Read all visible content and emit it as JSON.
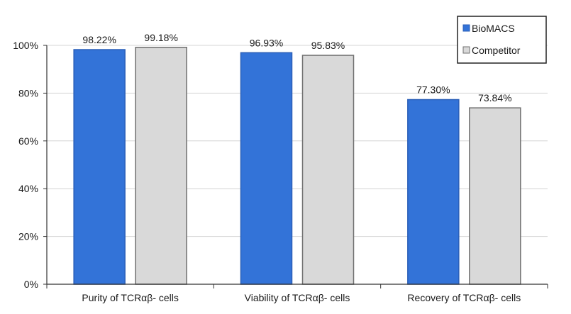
{
  "chart_data": {
    "type": "bar",
    "categories": [
      "Purity of TCRαβ- cells",
      "Viability of TCRαβ- cells",
      "Recovery of TCRαβ- cells"
    ],
    "series": [
      {
        "name": "BioMACS",
        "values": [
          98.22,
          96.93,
          77.3
        ],
        "labels": [
          "98.22%",
          "96.93%",
          "77.30%"
        ],
        "color": "#3373d8",
        "stroke": "#2b5fb8"
      },
      {
        "name": "Competitor",
        "values": [
          99.18,
          95.83,
          73.84
        ],
        "labels": [
          "99.18%",
          "95.83%",
          "73.84%"
        ],
        "color": "#d9d9d9",
        "stroke": "#707070"
      }
    ],
    "ylim": [
      0,
      100
    ],
    "yticks": [
      0,
      20,
      40,
      60,
      80,
      100
    ],
    "ytick_labels": [
      "0%",
      "20%",
      "40%",
      "60%",
      "80%",
      "100%"
    ],
    "grid": true,
    "legend_position": "top-right",
    "title": "",
    "xlabel": "",
    "ylabel": ""
  }
}
